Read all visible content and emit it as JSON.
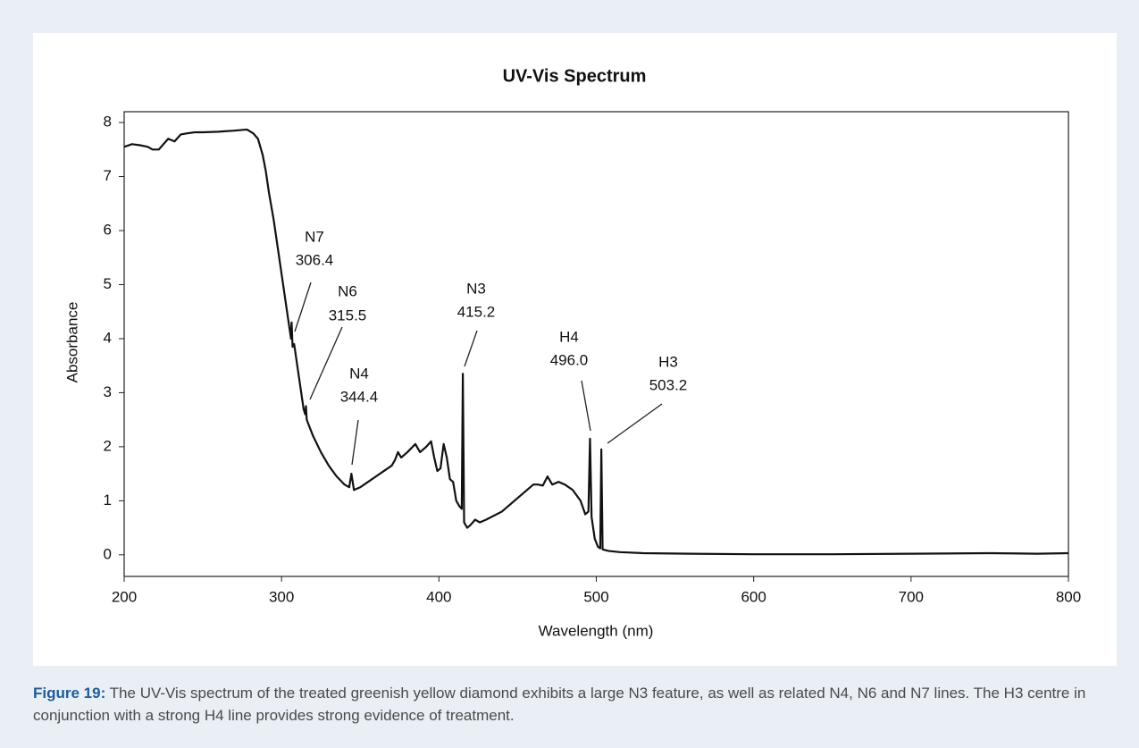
{
  "chart_data": {
    "type": "line",
    "title": "UV-Vis Spectrum",
    "xlabel": "Wavelength (nm)",
    "ylabel": "Absorbance",
    "x": [
      200,
      205,
      210,
      215,
      218,
      222,
      225,
      228,
      232,
      236,
      240,
      245,
      250,
      260,
      270,
      278,
      282,
      285,
      288,
      290,
      292,
      295,
      298,
      300,
      302,
      304,
      305,
      306,
      306.4,
      307,
      308,
      310,
      312,
      314,
      315,
      315.5,
      316,
      318,
      320,
      325,
      330,
      335,
      340,
      343,
      344.4,
      346,
      350,
      355,
      360,
      365,
      370,
      372,
      374,
      376,
      380,
      385,
      388,
      392,
      395,
      397,
      399,
      401,
      403,
      405,
      407,
      409,
      411,
      413,
      414.5,
      415.2,
      416,
      418,
      420,
      423,
      426,
      430,
      440,
      450,
      460,
      463,
      466,
      469,
      472,
      476,
      480,
      485,
      490,
      493,
      495,
      496,
      497,
      499,
      501,
      502.5,
      503.2,
      504,
      508,
      515,
      530,
      560,
      600,
      650,
      700,
      750,
      780,
      800
    ],
    "series": [
      {
        "name": "Absorbance",
        "color": "#111111",
        "values": [
          7.55,
          7.6,
          7.58,
          7.55,
          7.5,
          7.5,
          7.6,
          7.7,
          7.65,
          7.78,
          7.8,
          7.82,
          7.82,
          7.83,
          7.85,
          7.87,
          7.8,
          7.7,
          7.4,
          7.1,
          6.7,
          6.2,
          5.6,
          5.2,
          4.8,
          4.4,
          4.2,
          4.0,
          4.3,
          3.85,
          3.9,
          3.5,
          3.1,
          2.7,
          2.6,
          2.75,
          2.5,
          2.35,
          2.2,
          1.9,
          1.65,
          1.45,
          1.3,
          1.25,
          1.5,
          1.2,
          1.25,
          1.35,
          1.45,
          1.55,
          1.65,
          1.75,
          1.9,
          1.8,
          1.9,
          2.05,
          1.9,
          2.0,
          2.1,
          1.8,
          1.55,
          1.6,
          2.05,
          1.8,
          1.4,
          1.35,
          1.0,
          0.9,
          0.85,
          3.35,
          0.6,
          0.5,
          0.55,
          0.65,
          0.6,
          0.65,
          0.8,
          1.05,
          1.3,
          1.3,
          1.28,
          1.45,
          1.3,
          1.35,
          1.3,
          1.2,
          1.0,
          0.75,
          0.8,
          2.15,
          0.7,
          0.3,
          0.15,
          0.12,
          1.95,
          0.1,
          0.07,
          0.05,
          0.03,
          0.02,
          0.01,
          0.01,
          0.02,
          0.03,
          0.02,
          0.03
        ]
      }
    ],
    "xlim": [
      200,
      800
    ],
    "xticks": [
      200,
      300,
      400,
      500,
      600,
      700,
      800
    ],
    "ylim": [
      -0.4,
      8.2
    ],
    "yticks": [
      0,
      1,
      2,
      3,
      4,
      5,
      6,
      7,
      8
    ],
    "annotations": [
      {
        "name": "N7",
        "x": 306.4
      },
      {
        "name": "N6",
        "x": 315.5
      },
      {
        "name": "N4",
        "x": 344.4
      },
      {
        "name": "N3",
        "x": 415.2
      },
      {
        "name": "H4",
        "x": {
          "value": 496,
          "label": "496.0"
        }
      },
      {
        "name": "H3",
        "x": 503.2
      }
    ]
  },
  "caption": {
    "label": "Figure 19:",
    "text": "The UV-Vis spectrum of the treated greenish yellow diamond exhibits a large N3 feature, as well as related N4, N6 and N7 lines. The H3 centre in conjunction with a strong H4 line provides strong evidence of treatment."
  }
}
